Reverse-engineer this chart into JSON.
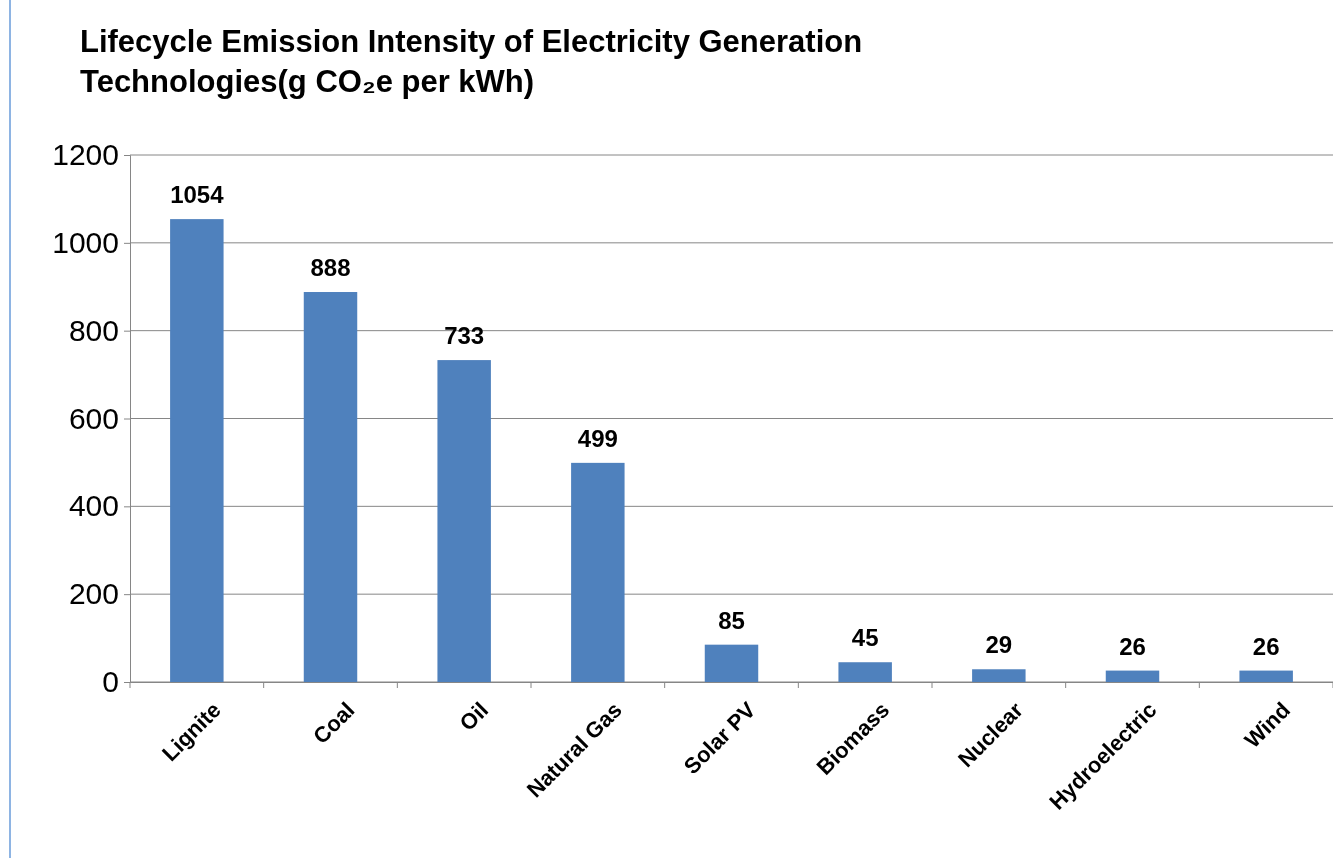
{
  "chart_data": {
    "type": "bar",
    "title": "Lifecycle Emission Intensity of Electricity Generation Technologies(g CO₂e per kWh)",
    "categories": [
      "Lignite",
      "Coal",
      "Oil",
      "Natural Gas",
      "Solar PV",
      "Biomass",
      "Nuclear",
      "Hydroelectric",
      "Wind"
    ],
    "values": [
      1054,
      888,
      733,
      499,
      85,
      45,
      29,
      26,
      26
    ],
    "color": "#4f81bd",
    "ylim": [
      0,
      1200
    ],
    "yticks": [
      0,
      200,
      400,
      600,
      800,
      1000,
      1200
    ],
    "grid": "y",
    "data_labels": true
  }
}
